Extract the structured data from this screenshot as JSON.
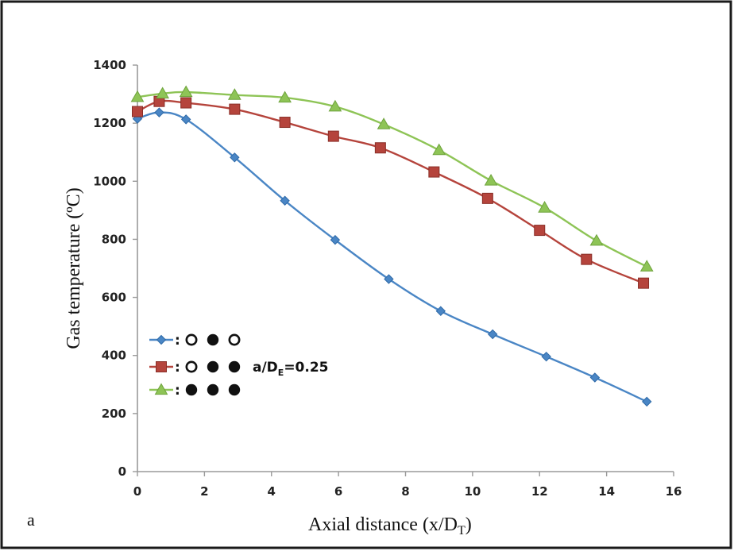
{
  "chart_data": {
    "type": "line",
    "xlabel": "Axial distance (x/D",
    "xlabel_sub": "T",
    "xlabel_end": ")",
    "ylabel": "Gas temperature (ºC)",
    "panel_label": "a",
    "xlim": [
      0,
      16
    ],
    "ylim": [
      0,
      1400
    ],
    "x_ticks": [
      0,
      2,
      4,
      6,
      8,
      10,
      12,
      14,
      16
    ],
    "x_tick_labels": [
      "0",
      "2",
      "4",
      "6",
      "8",
      "10",
      "12",
      "14",
      "16"
    ],
    "y_ticks": [
      0,
      200,
      400,
      600,
      800,
      1000,
      1200,
      1400
    ],
    "y_tick_labels": [
      "0",
      "200",
      "400",
      "600",
      "800",
      "1000",
      "1200",
      "1400"
    ],
    "annotation": {
      "text": "a/D",
      "sub": "E",
      "text_end": "=0.25"
    },
    "legend_separator": ":",
    "legend_position": "lower-left",
    "grid": false,
    "series": [
      {
        "color": "#4a86c5",
        "marker": "diamond",
        "pattern": [
          "open",
          "filled",
          "open"
        ],
        "x": [
          0,
          0.65,
          1.45,
          2.9,
          4.4,
          5.9,
          7.5,
          9.05,
          10.6,
          12.2,
          13.65,
          15.2
        ],
        "y": [
          1215,
          1237,
          1213,
          1082,
          933,
          798,
          663,
          553,
          473,
          396,
          324,
          241
        ]
      },
      {
        "color": "#b5443c",
        "marker": "square",
        "pattern": [
          "open",
          "filled",
          "filled"
        ],
        "x": [
          0,
          0.65,
          1.45,
          2.9,
          4.4,
          5.85,
          7.25,
          8.85,
          10.45,
          12.0,
          13.4,
          15.1
        ],
        "y": [
          1240,
          1275,
          1270,
          1248,
          1203,
          1155,
          1115,
          1032,
          941,
          831,
          731,
          649
        ]
      },
      {
        "color": "#8ec456",
        "marker": "triangle",
        "pattern": [
          "filled",
          "filled",
          "filled"
        ],
        "x": [
          0,
          0.75,
          1.45,
          2.9,
          4.4,
          5.9,
          7.35,
          9.0,
          10.55,
          12.15,
          13.7,
          15.2
        ],
        "y": [
          1290,
          1302,
          1307,
          1297,
          1288,
          1257,
          1196,
          1107,
          1002,
          909,
          795,
          706
        ]
      }
    ]
  }
}
